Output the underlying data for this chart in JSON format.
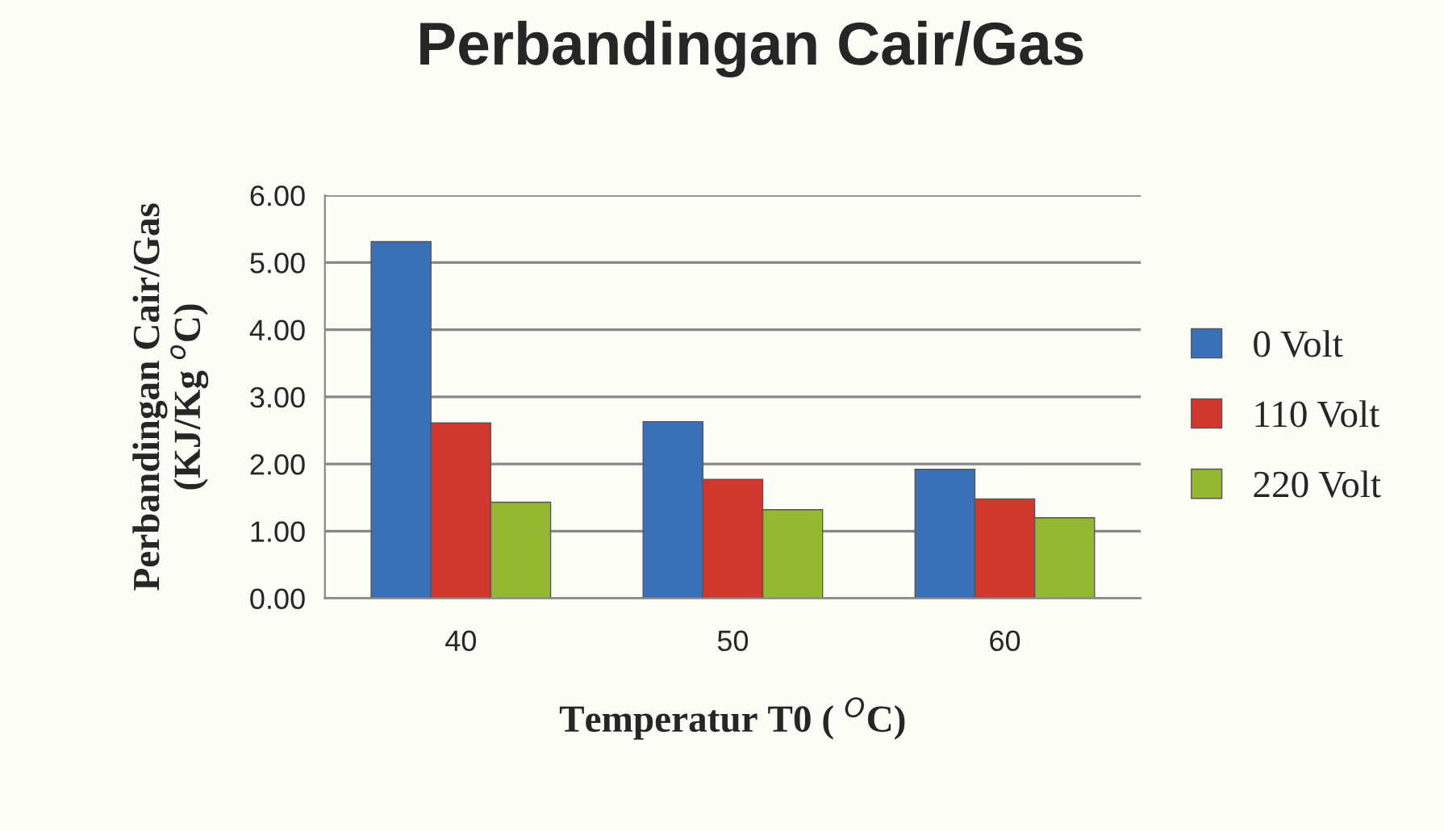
{
  "chart_data": {
    "type": "bar",
    "title": "Perbandingan Cair/Gas",
    "xlabel": "Temperatur T0 ( $^{O}$C)",
    "ylabel": "Perbandingan Cair/Gas\n(KJ/Kg $^{o}$C)",
    "categories": [
      "40",
      "50",
      "60"
    ],
    "series": [
      {
        "name": "0 Volt",
        "color": "#3a70b8",
        "values": [
          5.31,
          2.63,
          1.92
        ]
      },
      {
        "name": "110 Volt",
        "color": "#d0382e",
        "values": [
          2.61,
          1.77,
          1.48
        ]
      },
      {
        "name": "220 Volt",
        "color": "#94b832",
        "values": [
          1.43,
          1.32,
          1.2
        ]
      }
    ],
    "ylim": [
      0,
      6
    ],
    "yticks": [
      {
        "value": 0,
        "label": "0.00"
      },
      {
        "value": 1,
        "label": "1.00"
      },
      {
        "value": 2,
        "label": "2.00"
      },
      {
        "value": 3,
        "label": "3.00"
      },
      {
        "value": 4,
        "label": "4.00"
      },
      {
        "value": 5,
        "label": "5.00"
      },
      {
        "value": 6,
        "label": "6.00"
      }
    ],
    "grid": "y",
    "legend": "right"
  }
}
